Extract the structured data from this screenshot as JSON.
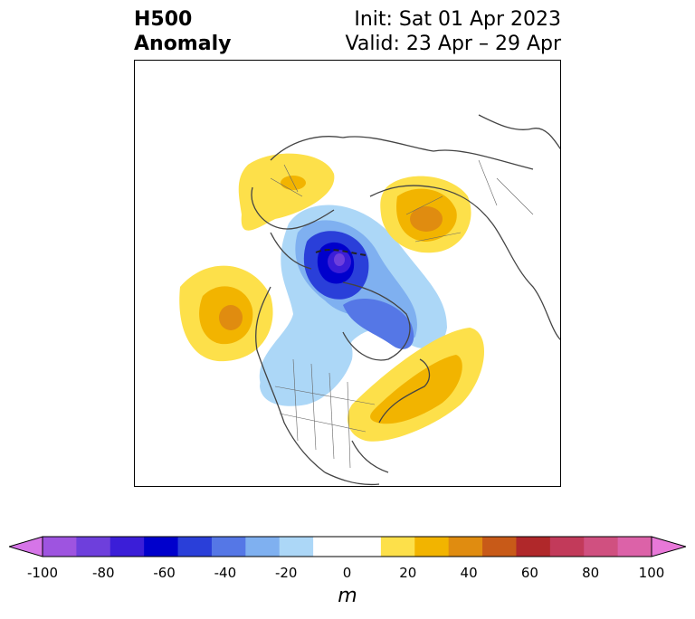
{
  "title": {
    "left_line1": "H500",
    "left_line2": "Anomaly",
    "init": "Init: Sat 01 Apr 2023",
    "valid": "Valid: 23 Apr – 29 Apr"
  },
  "map": {
    "projection": "north-polar-stereographic",
    "region": "Northern Hemisphere: North America, Arctic, Eurasia",
    "anomaly_centers": [
      {
        "sign": "negative",
        "location": "Arctic Ocean north of Siberia",
        "peak_m": -80
      },
      {
        "sign": "negative",
        "location": "Canadian Arctic / Greenland",
        "peak_m": -40
      },
      {
        "sign": "negative",
        "location": "western and central Canada / US northern plains",
        "peak_m": -20
      },
      {
        "sign": "positive",
        "location": "northeast Pacific / Gulf of Alaska",
        "peak_m": 40
      },
      {
        "sign": "positive",
        "location": "Scandinavia / northern Europe",
        "peak_m": 20
      },
      {
        "sign": "positive",
        "location": "north-central Russia / Siberia",
        "peak_m": 40
      },
      {
        "sign": "positive",
        "location": "eastern US / northwest Atlantic",
        "peak_m": 30
      }
    ]
  },
  "colorbar": {
    "unit": "m",
    "ticks": [
      "-100",
      "-80",
      "-60",
      "-40",
      "-20",
      "0",
      "20",
      "40",
      "60",
      "80",
      "100"
    ],
    "colors": [
      "#d675e8",
      "#9e54e0",
      "#6e3fdc",
      "#3b1ed8",
      "#0000cc",
      "#2a3fd9",
      "#5577e6",
      "#7fb0f0",
      "#acd7f7",
      "#ffffff",
      "#ffffff",
      "#fde04a",
      "#f2b400",
      "#e08c10",
      "#c85a18",
      "#b0282a",
      "#c23a5a",
      "#d05080",
      "#dc62a8",
      "#e878d8"
    ]
  }
}
